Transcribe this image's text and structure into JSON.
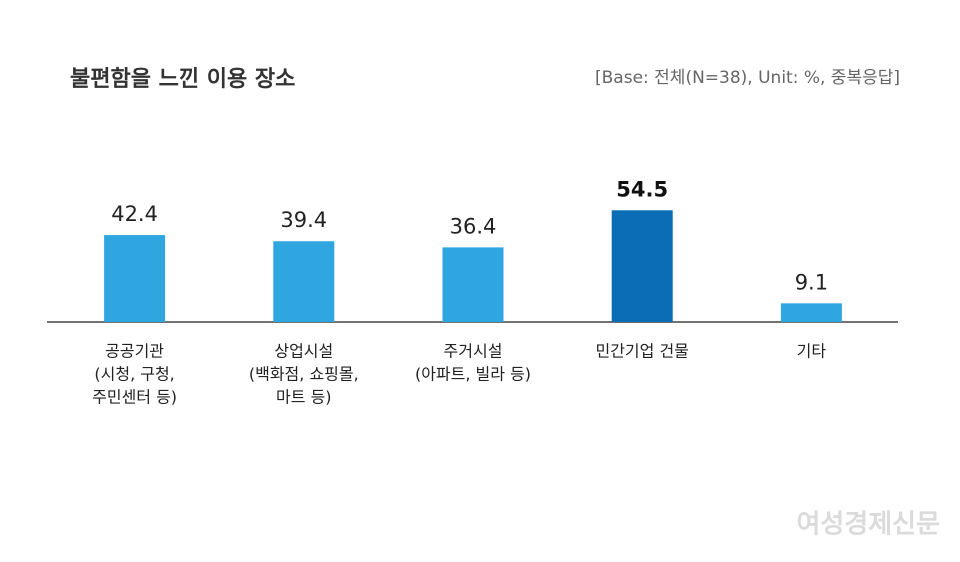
{
  "chart_data": {
    "type": "bar",
    "title": "불편함을 느낀 이용 장소",
    "subtitle": "[Base: 전체(N=38), Unit: %, 중복응답]",
    "categories": [
      [
        "공공기관",
        "(시청, 구청,",
        "주민센터 등)"
      ],
      [
        "상업시설",
        "(백화점, 쇼핑몰,",
        "마트 등)"
      ],
      [
        "주거시설",
        "(아파트, 빌라 등)"
      ],
      [
        "민간기업 건물"
      ],
      [
        "기타"
      ]
    ],
    "values": [
      42.4,
      39.4,
      36.4,
      54.5,
      9.1
    ],
    "bar_colors": [
      "#2fa6e0",
      "#2fa6e0",
      "#2fa6e0",
      "#0a6db5",
      "#2fa6e0"
    ],
    "highlight_color": "#0a6db5",
    "ylim": [
      0,
      60
    ],
    "watermark": "여성경제신문"
  }
}
